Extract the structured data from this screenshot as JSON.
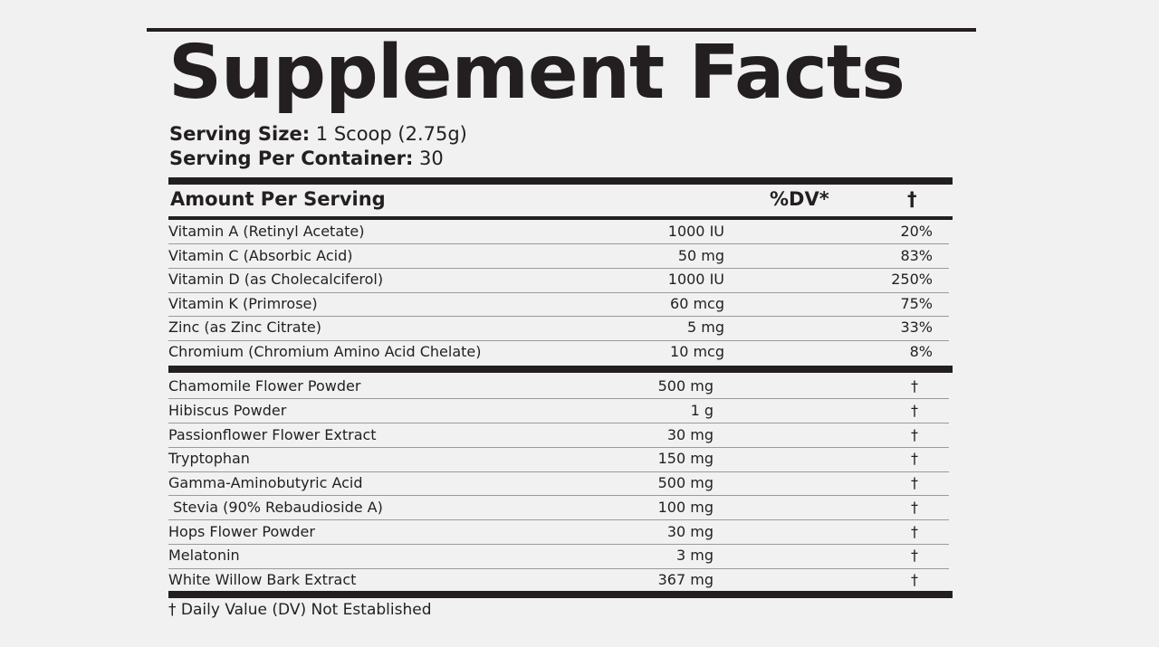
{
  "header": {
    "title": "Supplement Facts",
    "serving_size": {
      "label": "Serving Size:",
      "value": "1 Scoop (2.75g)"
    },
    "servings": {
      "label": "Serving Per Container:",
      "value": "30"
    }
  },
  "table": {
    "columns": [
      "Amount Per Serving",
      "%DV*",
      "†"
    ],
    "vitamins": [
      [
        "Vitamin A (Retinyl Acetate)",
        "1000 IU",
        "20%"
      ],
      [
        "Vitamin C (Absorbic Acid)",
        "50 mg",
        "83%"
      ],
      [
        "Vitamin D (as Cholecalciferol)",
        "1000 IU",
        "250%"
      ],
      [
        "Vitamin K (Primrose)",
        "60 mcg",
        "75%"
      ],
      [
        "Zinc (as Zinc Citrate)",
        "5 mg",
        "33%"
      ],
      [
        "Chromium (Chromium Amino Acid Chelate)",
        "10 mcg",
        "8%"
      ]
    ],
    "ingredients": [
      [
        "Chamomile Flower Powder",
        "500 mg",
        "†"
      ],
      [
        "Hibiscus Powder",
        "1 g",
        "†"
      ],
      [
        "Passionflower Flower Extract",
        "30 mg",
        "†"
      ],
      [
        "Tryptophan",
        "150 mg",
        "†"
      ],
      [
        "Gamma-Aminobutyric Acid",
        "500 mg",
        "†"
      ],
      [
        " Stevia (90% Rebaudioside A)",
        "100 mg",
        "†"
      ],
      [
        "Hops Flower Powder",
        "30 mg",
        "†"
      ],
      [
        "Melatonin",
        "3 mg",
        "†"
      ],
      [
        "White Willow Bark Extract",
        "367 mg",
        "†"
      ]
    ]
  },
  "footnote": "† Daily Value (DV) Not Established"
}
